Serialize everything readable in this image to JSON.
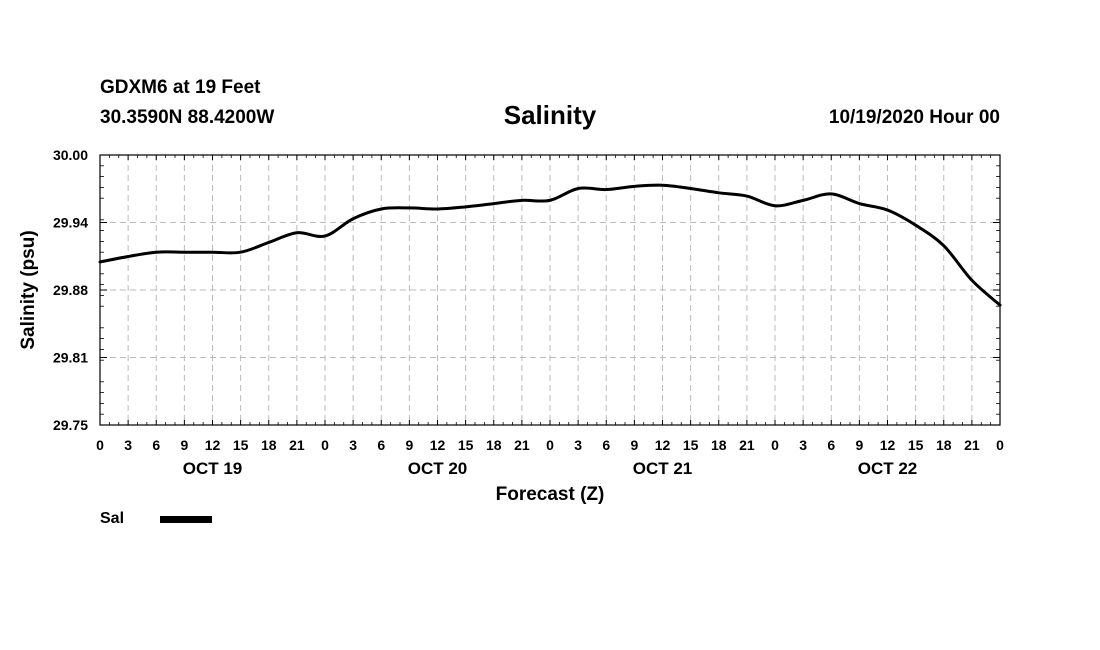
{
  "header": {
    "station": "GDXM6 at 19 Feet",
    "coords": "30.3590N 88.4200W",
    "title": "Salinity",
    "datetime": "10/19/2020 Hour 00"
  },
  "chart_data": {
    "type": "line",
    "title": "Salinity",
    "xlabel": "Forecast (Z)",
    "ylabel": "Salinity (psu)",
    "ylim": [
      29.75,
      30.0
    ],
    "y_ticks": [
      "29.75",
      "29.81",
      "29.88",
      "29.94",
      "30.00"
    ],
    "x_range_hours": [
      0,
      96
    ],
    "x_tick_labels": [
      "0",
      "3",
      "6",
      "9",
      "12",
      "15",
      "18",
      "21",
      "0",
      "3",
      "6",
      "9",
      "12",
      "15",
      "18",
      "21",
      "0",
      "3",
      "6",
      "9",
      "12",
      "15",
      "18",
      "21",
      "0",
      "3",
      "6",
      "9",
      "12",
      "15",
      "18",
      "21",
      "0"
    ],
    "date_labels": [
      {
        "label": "OCT 19",
        "hour": 12
      },
      {
        "label": "OCT 20",
        "hour": 36
      },
      {
        "label": "OCT 21",
        "hour": 60
      },
      {
        "label": "OCT 22",
        "hour": 84
      }
    ],
    "grid": true,
    "series": [
      {
        "name": "Sal",
        "x": [
          0,
          3,
          6,
          9,
          12,
          15,
          18,
          21,
          24,
          27,
          30,
          33,
          36,
          39,
          42,
          45,
          48,
          51,
          54,
          57,
          60,
          63,
          66,
          69,
          72,
          75,
          78,
          81,
          84,
          87,
          90,
          93,
          96
        ],
        "values": [
          29.901,
          29.906,
          29.91,
          29.91,
          29.91,
          29.91,
          29.919,
          29.928,
          29.925,
          29.941,
          29.95,
          29.951,
          29.95,
          29.952,
          29.955,
          29.958,
          29.958,
          29.969,
          29.968,
          29.971,
          29.972,
          29.969,
          29.965,
          29.962,
          29.953,
          29.958,
          29.964,
          29.955,
          29.949,
          29.935,
          29.916,
          29.884,
          29.861
        ]
      }
    ]
  },
  "legend": {
    "label": "Sal",
    "color": "#000000"
  }
}
